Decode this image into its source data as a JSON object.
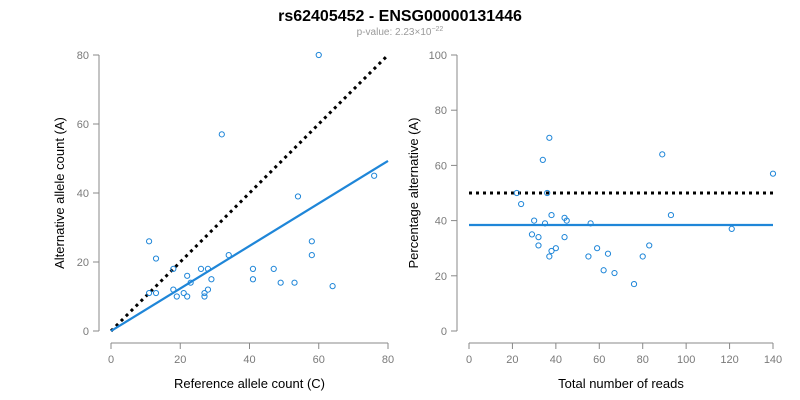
{
  "title": "rs62405452 - ENSG00000131446",
  "subtitle": {
    "prefix": "p-value: 2.23",
    "times": "×",
    "base": "10",
    "exponent": "−22"
  },
  "colors": {
    "points": "#1f86d8",
    "fit": "#1f86d8",
    "reference": "#000000"
  },
  "chart_data": [
    {
      "type": "scatter",
      "title": "",
      "xlabel": "Reference allele count (C)",
      "ylabel": "Alternative allele count (A)",
      "xlim": [
        0,
        80
      ],
      "ylim": [
        0,
        80
      ],
      "xticks": [
        "0",
        "20",
        "40",
        "60",
        "80"
      ],
      "yticks": [
        "0",
        "20",
        "40",
        "60",
        "80"
      ],
      "points": [
        [
          11,
          26
        ],
        [
          13,
          21
        ],
        [
          11,
          11
        ],
        [
          13,
          11
        ],
        [
          18,
          18
        ],
        [
          18,
          12
        ],
        [
          19,
          10
        ],
        [
          21,
          11
        ],
        [
          22,
          16
        ],
        [
          22,
          10
        ],
        [
          23,
          14
        ],
        [
          26,
          18
        ],
        [
          27,
          10
        ],
        [
          27,
          11
        ],
        [
          28,
          18
        ],
        [
          28,
          12
        ],
        [
          29,
          15
        ],
        [
          32,
          57
        ],
        [
          34,
          22
        ],
        [
          41,
          15
        ],
        [
          41,
          18
        ],
        [
          47,
          18
        ],
        [
          49,
          14
        ],
        [
          53,
          14
        ],
        [
          54,
          39
        ],
        [
          58,
          26
        ],
        [
          58,
          22
        ],
        [
          60,
          80
        ],
        [
          64,
          13
        ],
        [
          76,
          45
        ]
      ],
      "fit_line": {
        "x": [
          0,
          80
        ],
        "y": [
          0,
          49.3
        ]
      },
      "reference_line": {
        "x": [
          0,
          80
        ],
        "y": [
          0,
          80
        ]
      }
    },
    {
      "type": "scatter",
      "title": "",
      "xlabel": "Total number of reads",
      "ylabel": "Percentage alternative (A)",
      "xlim": [
        0,
        140
      ],
      "ylim": [
        0,
        100
      ],
      "xticks": [
        "0",
        "20",
        "40",
        "60",
        "80",
        "100",
        "120",
        "140"
      ],
      "yticks": [
        "0",
        "20",
        "40",
        "60",
        "80",
        "100"
      ],
      "points": [
        [
          22,
          50
        ],
        [
          24,
          46
        ],
        [
          29,
          35
        ],
        [
          30,
          40
        ],
        [
          32,
          31
        ],
        [
          32,
          34
        ],
        [
          34,
          62
        ],
        [
          35,
          39
        ],
        [
          36,
          50
        ],
        [
          37,
          70
        ],
        [
          37,
          27
        ],
        [
          38,
          42
        ],
        [
          38,
          29
        ],
        [
          40,
          30
        ],
        [
          44,
          41
        ],
        [
          44,
          34
        ],
        [
          45,
          40
        ],
        [
          55,
          27
        ],
        [
          56,
          39
        ],
        [
          59,
          30
        ],
        [
          62,
          22
        ],
        [
          64,
          28
        ],
        [
          67,
          21
        ],
        [
          76,
          17
        ],
        [
          80,
          27
        ],
        [
          83,
          31
        ],
        [
          89,
          64
        ],
        [
          93,
          42
        ],
        [
          121,
          37
        ],
        [
          140,
          57
        ]
      ],
      "fit_line": {
        "x": [
          0,
          140
        ],
        "y": [
          38.4,
          38.4
        ]
      },
      "reference_line": {
        "x": [
          0,
          140
        ],
        "y": [
          50,
          50
        ]
      }
    }
  ]
}
